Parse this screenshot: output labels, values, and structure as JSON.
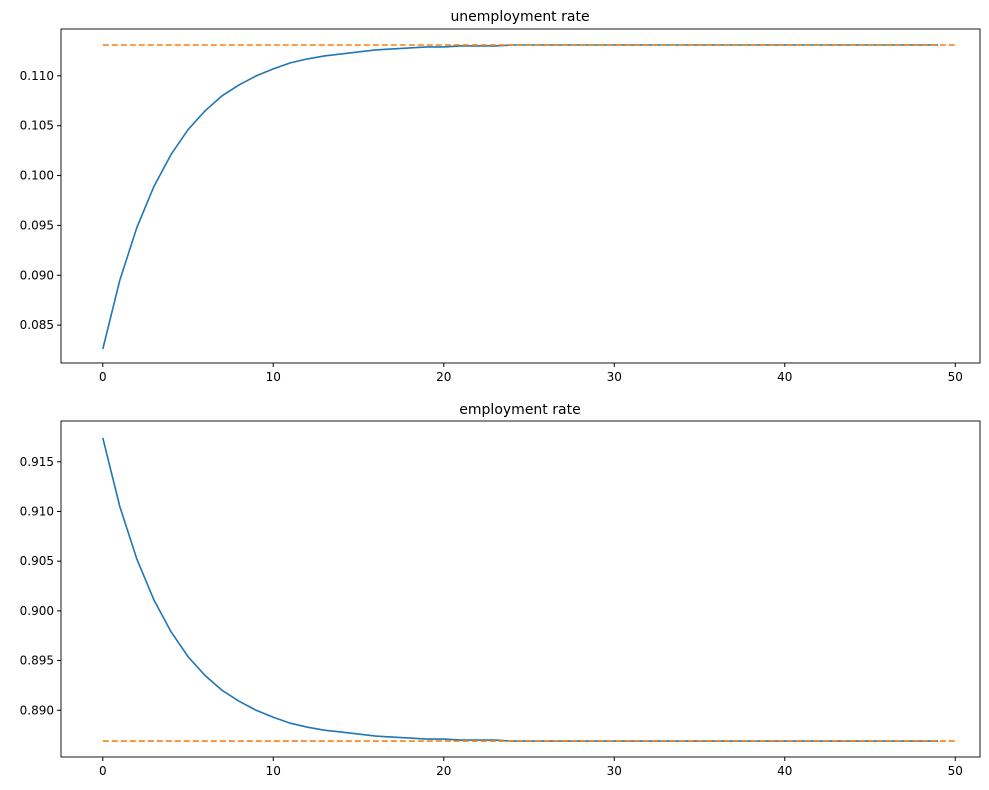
{
  "chart_data": [
    {
      "type": "line",
      "title": "unemployment rate",
      "xlim": [
        -2.45,
        51.45
      ],
      "ylim": [
        0.0812,
        0.1147
      ],
      "x_ticks": [
        0,
        10,
        20,
        30,
        40,
        50
      ],
      "y_ticks": [
        0.085,
        0.09,
        0.095,
        0.1,
        0.105,
        0.11
      ],
      "y_tick_labels": [
        "0.085",
        "0.090",
        "0.095",
        "0.100",
        "0.105",
        "0.110"
      ],
      "grid": false,
      "series": [
        {
          "style": "solid",
          "color": "#1f77b4",
          "x_start": 0,
          "values": [
            0.0826,
            0.0895,
            0.0948,
            0.0989,
            0.1021,
            0.1046,
            0.1065,
            0.108,
            0.1091,
            0.11,
            0.1107,
            0.1113,
            0.1117,
            0.112,
            0.1122,
            0.1124,
            0.1126,
            0.1127,
            0.1128,
            0.1129,
            0.1129,
            0.113,
            0.113,
            0.113,
            0.1131,
            0.1131,
            0.1131,
            0.1131,
            0.1131,
            0.1131,
            0.1131,
            0.1131,
            0.1131,
            0.1131,
            0.1131,
            0.1131,
            0.1131,
            0.1131,
            0.1131,
            0.1131,
            0.1131,
            0.1131,
            0.1131,
            0.1131,
            0.1131,
            0.1131,
            0.1131,
            0.1131,
            0.1131,
            0.1131
          ]
        },
        {
          "style": "dashed",
          "color": "#ff7f0e",
          "x": [
            0,
            50
          ],
          "values": [
            0.1131,
            0.1131
          ]
        }
      ]
    },
    {
      "type": "line",
      "title": "employment rate",
      "xlim": [
        -2.45,
        51.45
      ],
      "ylim": [
        0.8853,
        0.9191
      ],
      "x_ticks": [
        0,
        10,
        20,
        30,
        40,
        50
      ],
      "y_ticks": [
        0.89,
        0.895,
        0.9,
        0.905,
        0.91,
        0.915
      ],
      "y_tick_labels": [
        "0.890",
        "0.895",
        "0.900",
        "0.905",
        "0.910",
        "0.915"
      ],
      "grid": false,
      "series": [
        {
          "style": "solid",
          "color": "#1f77b4",
          "x_start": 0,
          "values": [
            0.9174,
            0.9105,
            0.9052,
            0.9011,
            0.8979,
            0.8954,
            0.8935,
            0.892,
            0.8909,
            0.89,
            0.8893,
            0.8887,
            0.8883,
            0.888,
            0.8878,
            0.8876,
            0.8874,
            0.8873,
            0.8872,
            0.8871,
            0.8871,
            0.887,
            0.887,
            0.887,
            0.8869,
            0.8869,
            0.8869,
            0.8869,
            0.8869,
            0.8869,
            0.8869,
            0.8869,
            0.8869,
            0.8869,
            0.8869,
            0.8869,
            0.8869,
            0.8869,
            0.8869,
            0.8869,
            0.8869,
            0.8869,
            0.8869,
            0.8869,
            0.8869,
            0.8869,
            0.8869,
            0.8869,
            0.8869,
            0.8869
          ]
        },
        {
          "style": "dashed",
          "color": "#ff7f0e",
          "x": [
            0,
            50
          ],
          "values": [
            0.8869,
            0.8869
          ]
        }
      ]
    }
  ]
}
